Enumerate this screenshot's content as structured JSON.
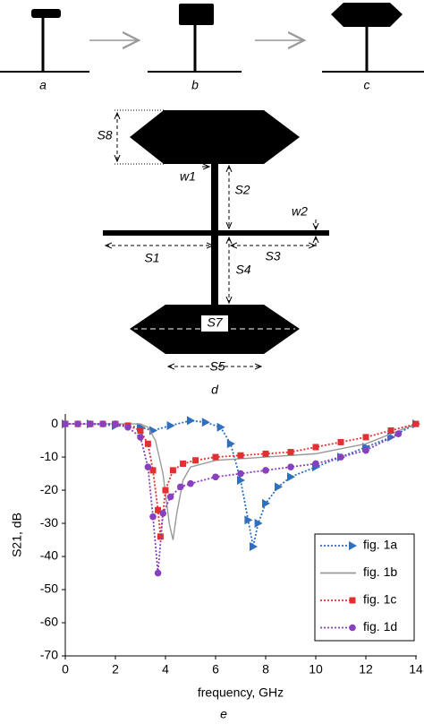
{
  "diagram": {
    "captions": [
      "a",
      "b",
      "c",
      "d",
      "e"
    ],
    "labels": {
      "s8": "S8",
      "w1": "w1",
      "s2": "S2",
      "w2": "w2",
      "s1": "S1",
      "s3": "S3",
      "s4": "S4",
      "s7": "S7",
      "s5": "S5"
    }
  },
  "chart_data": {
    "type": "line",
    "xlabel": "frequency, GHz",
    "ylabel": "S21, dB",
    "xlim": [
      0,
      14
    ],
    "xticks": [
      0,
      2,
      4,
      6,
      8,
      10,
      12,
      14
    ],
    "ylim": [
      -70,
      3
    ],
    "yticks": [
      0,
      -10,
      -20,
      -30,
      -40,
      -50,
      -60,
      -70
    ],
    "legend": "lower right",
    "series": [
      {
        "name": "fig. 1a",
        "color": "#2e6fbe",
        "marker": "triangle",
        "dashed": true,
        "x": [
          0,
          1,
          2,
          3,
          3.5,
          4.2,
          5,
          5.6,
          6.2,
          6.6,
          7,
          7.3,
          7.5,
          7.7,
          8,
          8.5,
          9,
          10,
          11,
          12,
          13,
          14
        ],
        "values": [
          0,
          0,
          -0.5,
          -1,
          -2,
          -0.5,
          1,
          0.5,
          -1,
          -6,
          -17,
          -29,
          -37,
          -30,
          -24,
          -19,
          -16,
          -13,
          -10,
          -7,
          -4,
          0
        ]
      },
      {
        "name": "fig. 1b",
        "color": "#999999",
        "marker": "none",
        "dashed": false,
        "x": [
          0,
          2,
          3,
          3.3,
          3.6,
          3.9,
          4.15,
          4.3,
          4.45,
          4.7,
          5,
          6,
          8,
          10,
          12,
          14
        ],
        "values": [
          0,
          0,
          0,
          -1,
          -5,
          -15,
          -30,
          -35,
          -27,
          -17,
          -13,
          -11,
          -10,
          -9,
          -6,
          0
        ]
      },
      {
        "name": "fig. 1c",
        "color": "#e03030",
        "marker": "square",
        "dashed": true,
        "x": [
          0,
          0.5,
          1,
          1.5,
          2,
          2.5,
          3,
          3.3,
          3.5,
          3.7,
          3.8,
          4,
          4.3,
          4.7,
          5.2,
          6,
          7,
          8,
          9,
          10,
          11,
          12,
          13,
          14
        ],
        "values": [
          0,
          0,
          0,
          0,
          0,
          -0.5,
          -2,
          -6,
          -14,
          -26,
          -34,
          -20,
          -14,
          -12,
          -11,
          -10,
          -9.5,
          -9,
          -8.5,
          -7,
          -5.5,
          -4,
          -2,
          0
        ]
      },
      {
        "name": "fig. 1d",
        "color": "#8a3fbf",
        "marker": "circle",
        "dashed": true,
        "x": [
          0,
          0.5,
          1,
          1.5,
          2,
          2.5,
          3,
          3.3,
          3.5,
          3.7,
          3.9,
          4.2,
          4.6,
          5,
          6,
          7,
          8,
          9,
          10,
          11,
          12,
          13.3
        ],
        "values": [
          0,
          0,
          0,
          0,
          0,
          -1,
          -4,
          -13,
          -28,
          -45,
          -27,
          -22,
          -19,
          -18,
          -16,
          -15,
          -14,
          -13,
          -12,
          -10,
          -8,
          -3
        ]
      }
    ]
  }
}
